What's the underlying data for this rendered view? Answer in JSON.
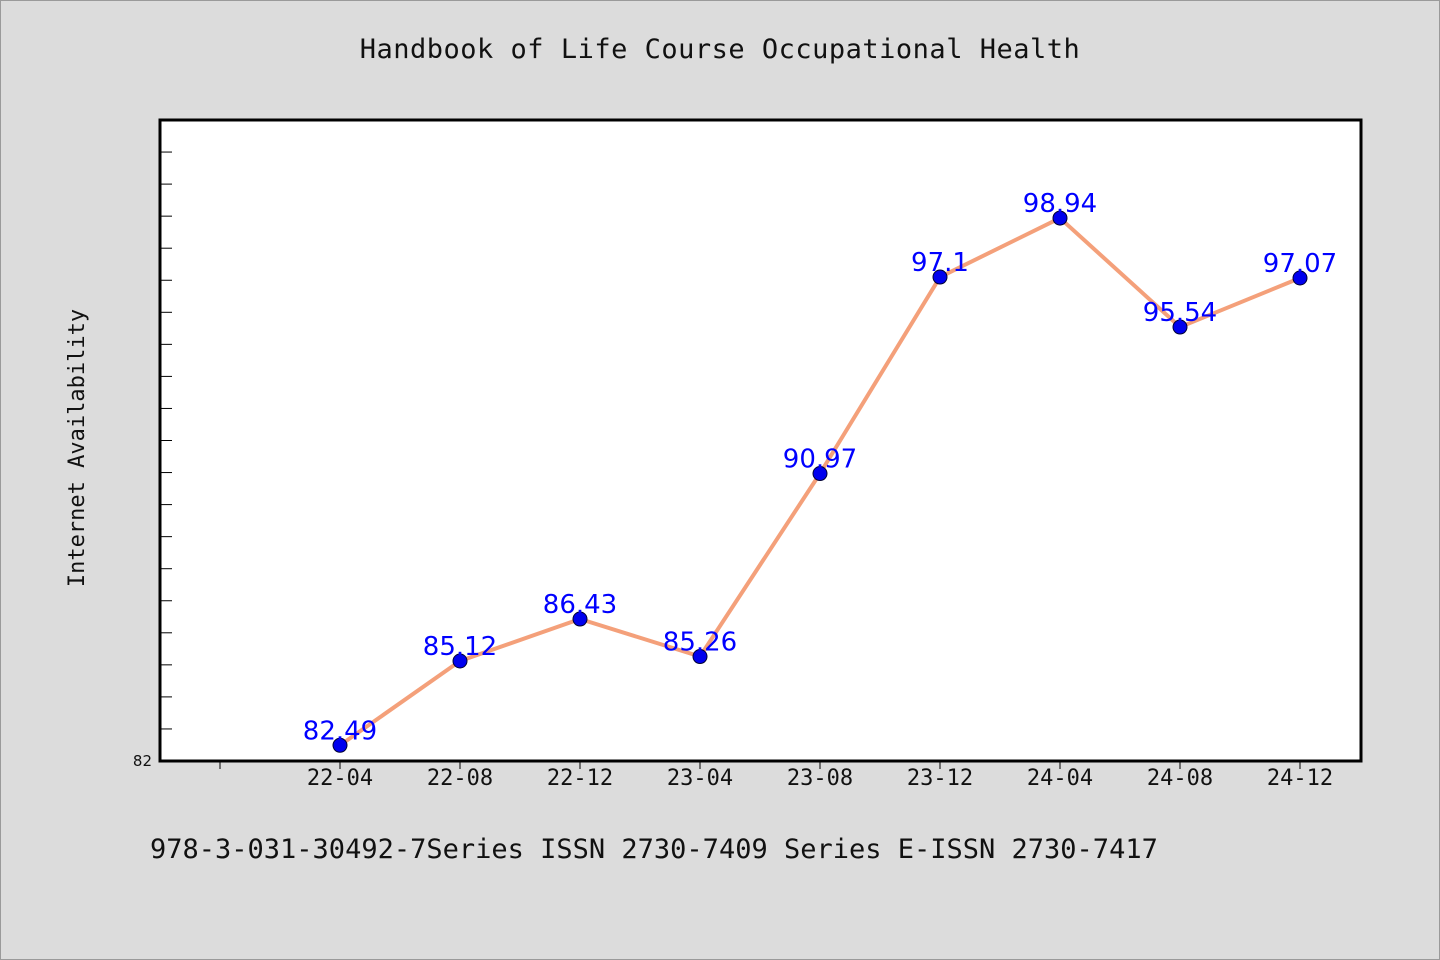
{
  "title": "Handbook of Life Course Occupational Health",
  "footer": "978-3-031-30492-7Series ISSN 2730-7409 Series E-ISSN 2730-7417",
  "colors": {
    "background": "#dcdcdc",
    "plot_background": "#ffffff",
    "line": "#f4a07a",
    "marker": "#0000ee",
    "data_label": "#0000ff"
  },
  "chart_data": {
    "type": "line",
    "title": "Handbook of Life Course Occupational Health",
    "xlabel": "",
    "ylabel": "Internet Availability",
    "categories": [
      "22-04",
      "22-08",
      "22-12",
      "23-04",
      "23-08",
      "23-12",
      "24-04",
      "24-08",
      "24-12"
    ],
    "series": [
      {
        "values": [
          82.49,
          85.12,
          86.43,
          85.26,
          90.97,
          97.1,
          98.94,
          95.54,
          97.07
        ]
      }
    ],
    "data_labels": [
      "82.49",
      "85.12",
      "86.43",
      "85.26",
      "90.97",
      "97.1",
      "98.94",
      "95.54",
      "97.07"
    ],
    "ylim": [
      82,
      102
    ],
    "y_tick_labels": [
      "82"
    ],
    "grid": false,
    "legend": "none"
  }
}
